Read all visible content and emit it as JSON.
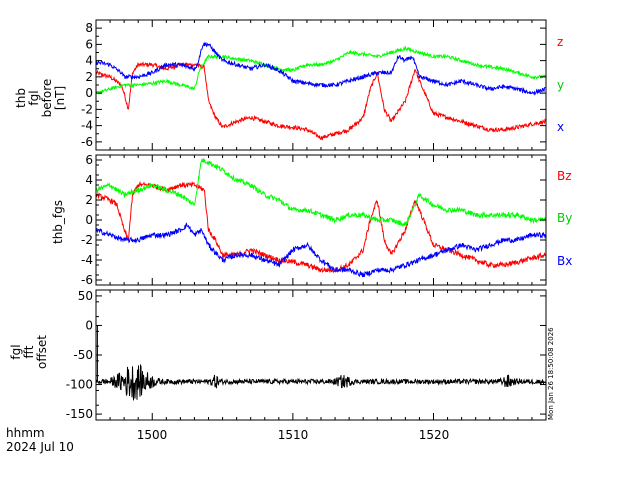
{
  "chart_data": [
    {
      "type": "line",
      "ylabel_lines": [
        "thb",
        "fgl",
        "before",
        "[nT]"
      ],
      "ylim": [
        -7,
        9
      ],
      "yticks": [
        -6,
        -4,
        -2,
        0,
        2,
        4,
        6,
        8
      ],
      "xlim": [
        1496,
        1528
      ],
      "xticks": [
        1500,
        1510,
        1520
      ],
      "series": [
        {
          "name": "z",
          "color": "#ff0000",
          "noise": 0.25,
          "x": [
            1496,
            1497,
            1497.8,
            1498,
            1498.3,
            1498.6,
            1499,
            1500,
            1501,
            1502,
            1503,
            1503.7,
            1504,
            1504.5,
            1505,
            1506,
            1507,
            1508,
            1509,
            1510,
            1511,
            1512,
            1513,
            1514,
            1515,
            1515.5,
            1516,
            1516.5,
            1517,
            1518,
            1518.7,
            1519,
            1520,
            1521,
            1522,
            1523,
            1524,
            1525,
            1526,
            1527,
            1528
          ],
          "y": [
            2.5,
            2.0,
            1.0,
            0.0,
            -2.0,
            2.5,
            3.5,
            3.5,
            3.0,
            3.5,
            3.5,
            3.2,
            -1.0,
            -3.0,
            -4.2,
            -3.5,
            -3.0,
            -3.5,
            -4.0,
            -4.2,
            -4.5,
            -5.5,
            -5.0,
            -4.5,
            -3.0,
            0.5,
            2.5,
            -2.0,
            -3.5,
            -1.0,
            3.0,
            1.5,
            -2.5,
            -3.0,
            -3.5,
            -4.0,
            -4.5,
            -4.5,
            -4.2,
            -3.8,
            -3.5
          ]
        },
        {
          "name": "y",
          "color": "#00ff00",
          "noise": 0.2,
          "x": [
            1496,
            1497,
            1498,
            1499,
            1500,
            1501,
            1502,
            1502.5,
            1503,
            1503.4,
            1504,
            1505,
            1506,
            1507,
            1508,
            1509,
            1510,
            1511,
            1512,
            1513,
            1514,
            1515,
            1516,
            1517,
            1518,
            1519,
            1520,
            1521,
            1522,
            1523,
            1524,
            1525,
            1526,
            1527,
            1528
          ],
          "y": [
            0.0,
            0.5,
            1.0,
            1.0,
            1.2,
            1.5,
            1.0,
            0.8,
            0.5,
            3.0,
            4.5,
            4.5,
            4.2,
            4.0,
            3.5,
            3.0,
            2.8,
            3.5,
            3.5,
            4.0,
            5.0,
            4.8,
            4.5,
            5.0,
            5.5,
            5.0,
            4.5,
            4.5,
            4.0,
            3.5,
            3.2,
            3.0,
            2.5,
            2.0,
            2.0
          ]
        },
        {
          "name": "x",
          "color": "#0000ff",
          "noise": 0.25,
          "x": [
            1496,
            1497,
            1497.8,
            1498,
            1499,
            1500,
            1501,
            1502,
            1503,
            1503.2,
            1503.6,
            1504,
            1504.5,
            1505,
            1506,
            1507,
            1508,
            1509,
            1510,
            1511,
            1512,
            1513,
            1514,
            1515,
            1516,
            1517,
            1517.5,
            1518,
            1518.5,
            1519,
            1520,
            1521,
            1522,
            1523,
            1524,
            1525,
            1526,
            1527,
            1528
          ],
          "y": [
            3.8,
            3.5,
            2.5,
            2.0,
            2.0,
            2.5,
            3.5,
            3.5,
            3.0,
            3.5,
            6.0,
            6.0,
            5.0,
            4.0,
            3.5,
            3.0,
            3.5,
            2.8,
            1.5,
            1.2,
            1.0,
            1.0,
            1.5,
            2.0,
            2.5,
            2.5,
            4.5,
            4.0,
            4.5,
            2.0,
            1.5,
            1.0,
            1.5,
            1.0,
            0.5,
            0.8,
            0.5,
            0.0,
            0.5
          ]
        }
      ]
    },
    {
      "type": "line",
      "ylabel": "thb_fgs",
      "ylim": [
        -6.5,
        6.5
      ],
      "yticks": [
        -6,
        -4,
        -2,
        0,
        2,
        4,
        6
      ],
      "xlim": [
        1496,
        1528
      ],
      "xticks": [
        1500,
        1510,
        1520
      ],
      "series": [
        {
          "name": "Bz",
          "color": "#ff0000",
          "noise": 0.25,
          "x": [
            1496,
            1497,
            1497.5,
            1498,
            1498.3,
            1498.6,
            1499,
            1500,
            1501,
            1502,
            1503,
            1503.7,
            1504,
            1504.5,
            1505,
            1506,
            1507,
            1508,
            1509,
            1510,
            1511,
            1512,
            1513,
            1514,
            1515,
            1515.5,
            1516,
            1516.5,
            1517,
            1518,
            1518.7,
            1519,
            1520,
            1521,
            1522,
            1523,
            1524,
            1525,
            1526,
            1527,
            1528
          ],
          "y": [
            2.5,
            2.0,
            1.5,
            -1.0,
            -2.0,
            2.5,
            3.5,
            3.5,
            3.0,
            3.5,
            3.5,
            3.0,
            -1.0,
            -2.0,
            -3.5,
            -3.5,
            -3.0,
            -3.5,
            -4.0,
            -4.2,
            -4.5,
            -5.0,
            -5.0,
            -4.5,
            -3.0,
            0.0,
            2.0,
            -2.0,
            -3.5,
            -1.0,
            2.0,
            1.0,
            -2.5,
            -3.0,
            -3.5,
            -4.0,
            -4.5,
            -4.5,
            -4.2,
            -3.8,
            -3.5
          ]
        },
        {
          "name": "By",
          "color": "#00ff00",
          "noise": 0.25,
          "x": [
            1496,
            1497,
            1498,
            1499,
            1500,
            1501,
            1502,
            1502.5,
            1503,
            1503.5,
            1504,
            1505,
            1506,
            1507,
            1508,
            1509,
            1510,
            1511,
            1512,
            1513,
            1514,
            1515,
            1516,
            1517,
            1518,
            1519,
            1520,
            1521,
            1522,
            1523,
            1524,
            1525,
            1526,
            1527,
            1528
          ],
          "y": [
            3.0,
            3.5,
            2.5,
            3.0,
            3.5,
            3.0,
            2.5,
            2.0,
            1.5,
            6.0,
            5.8,
            5.0,
            4.0,
            3.5,
            2.5,
            2.0,
            1.0,
            1.0,
            0.5,
            0.0,
            0.5,
            0.5,
            0.0,
            0.0,
            -0.5,
            2.5,
            1.5,
            1.0,
            1.0,
            0.5,
            0.5,
            0.5,
            0.5,
            0.0,
            0.0
          ]
        },
        {
          "name": "Bx",
          "color": "#0000ff",
          "noise": 0.25,
          "x": [
            1496,
            1497,
            1498,
            1499,
            1500,
            1501,
            1502,
            1502.5,
            1503,
            1503.5,
            1504,
            1505,
            1506,
            1507,
            1508,
            1509,
            1510,
            1511,
            1512,
            1513,
            1514,
            1515,
            1516,
            1517,
            1518,
            1519,
            1520,
            1521,
            1522,
            1523,
            1524,
            1525,
            1526,
            1527,
            1528
          ],
          "y": [
            -1.0,
            -1.5,
            -2.0,
            -2.0,
            -1.5,
            -1.5,
            -1.0,
            -0.5,
            -1.5,
            -1.0,
            -2.5,
            -4.0,
            -3.5,
            -3.5,
            -4.0,
            -4.5,
            -3.0,
            -2.5,
            -4.0,
            -5.0,
            -5.0,
            -5.5,
            -5.0,
            -5.0,
            -4.5,
            -4.0,
            -3.5,
            -3.0,
            -2.5,
            -3.0,
            -2.5,
            -2.0,
            -2.0,
            -1.5,
            -1.5
          ]
        }
      ]
    },
    {
      "type": "line",
      "ylabel_lines": [
        "fgl",
        "fft",
        "offset"
      ],
      "ylim": [
        -160,
        60
      ],
      "yticks": [
        -150,
        -100,
        -50,
        0,
        50
      ],
      "xlim": [
        1496,
        1528
      ],
      "xticks": [
        1500,
        1510,
        1520
      ],
      "series": [
        {
          "name": "offset",
          "color": "#000000",
          "baseline": -95,
          "base_noise": 4,
          "bursts": [
            {
              "center": 1498.7,
              "width": 1.1,
              "amp": 28
            },
            {
              "center": 1504.5,
              "width": 0.3,
              "amp": 8
            },
            {
              "center": 1513.6,
              "width": 0.5,
              "amp": 8
            },
            {
              "center": 1525.3,
              "width": 0.4,
              "amp": 8
            }
          ],
          "start_spike": {
            "x": 1496.1,
            "y": 0
          }
        }
      ]
    }
  ],
  "axis_label_row1": "hhmm",
  "axis_label_row2": "2024 Jul 10",
  "tick_labels_x": [
    "1500",
    "1510",
    "1520"
  ],
  "side_stamp": "Mon Jan 26 18:50:08 2026"
}
